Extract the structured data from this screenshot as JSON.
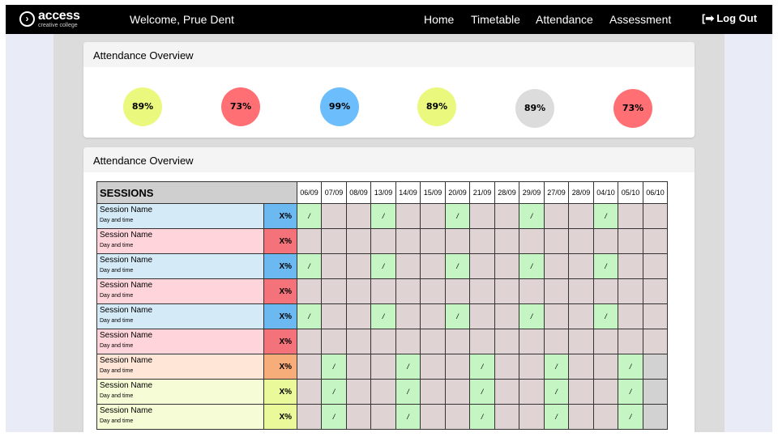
{
  "app": {
    "logo_text": "access",
    "logo_subtext": "creative college",
    "welcome": "Welcome, Prue Dent",
    "nav": [
      {
        "label": "Home"
      },
      {
        "label": "Timetable"
      },
      {
        "label": "Attendance"
      },
      {
        "label": "Assessment"
      }
    ],
    "logout_label": "Log Out"
  },
  "overview": {
    "title": "Attendance Overview",
    "items": [
      {
        "value": "89%",
        "color": "#eaf97e"
      },
      {
        "value": "73%",
        "color": "#ff6f73"
      },
      {
        "value": "99%",
        "color": "#6cbdfb"
      },
      {
        "value": "89%",
        "color": "#eaf97e"
      },
      {
        "value": "89%",
        "color": "#dcdcdc"
      },
      {
        "value": "73%",
        "color": "#ff6f73"
      }
    ]
  },
  "sessions": {
    "title": "Attendance Overview",
    "header": "SESSIONS",
    "dates": [
      "06/09",
      "07/09",
      "08/09",
      "13/09",
      "14/09",
      "15/09",
      "20/09",
      "21/09",
      "28/09",
      "29/09",
      "27/09",
      "28/09",
      "04/10",
      "05/10",
      "06/10"
    ],
    "mark": "/",
    "colors": {
      "present": "#c6f5c4",
      "absent": "#e0d3d4",
      "grey": "#d2d2d2"
    },
    "rows": [
      {
        "name": "Session Name",
        "time": "Day and time",
        "pct": "X%",
        "bg": "#d4eaf6",
        "pc_bg": "#6cb9f2",
        "cells": "PAAPAAPAAPAAPAA"
      },
      {
        "name": "Session Name",
        "time": "Day and time",
        "pct": "X%",
        "bg": "#ffd5db",
        "pc_bg": "#f4737a",
        "cells": "AAAAAAAAAAAAAAA"
      },
      {
        "name": "Session Name",
        "time": "Day and time",
        "pct": "X%",
        "bg": "#d4eaf6",
        "pc_bg": "#6cb9f2",
        "cells": "PAAPAAPAAPAAPAA"
      },
      {
        "name": "Session Name",
        "time": "Day and time",
        "pct": "X%",
        "bg": "#ffd5db",
        "pc_bg": "#f4737a",
        "cells": "AAAAAAAAAAAAAAA"
      },
      {
        "name": "Session Name",
        "time": "Day and time",
        "pct": "X%",
        "bg": "#d4eaf6",
        "pc_bg": "#6cb9f2",
        "cells": "PAAPAAPAAPAAPAA"
      },
      {
        "name": "Session Name",
        "time": "Day and time",
        "pct": "X%",
        "bg": "#ffd5db",
        "pc_bg": "#f4737a",
        "cells": "AAAAAAAAAAAAAAA"
      },
      {
        "name": "Session Name",
        "time": "Day and time",
        "pct": "X%",
        "bg": "#ffe6d6",
        "pc_bg": "#f7ad7a",
        "cells": "APAAPAAPAAPAAPG"
      },
      {
        "name": "Session Name",
        "time": "Day and time",
        "pct": "X%",
        "bg": "#f6fcd6",
        "pc_bg": "#eaf99a",
        "cells": "APAAPAAPAAPAAPG"
      },
      {
        "name": "Session Name",
        "time": "Day and time",
        "pct": "X%",
        "bg": "#f6fcd6",
        "pc_bg": "#eaf99a",
        "cells": "APAAPAAPAAPAAPG"
      }
    ]
  }
}
